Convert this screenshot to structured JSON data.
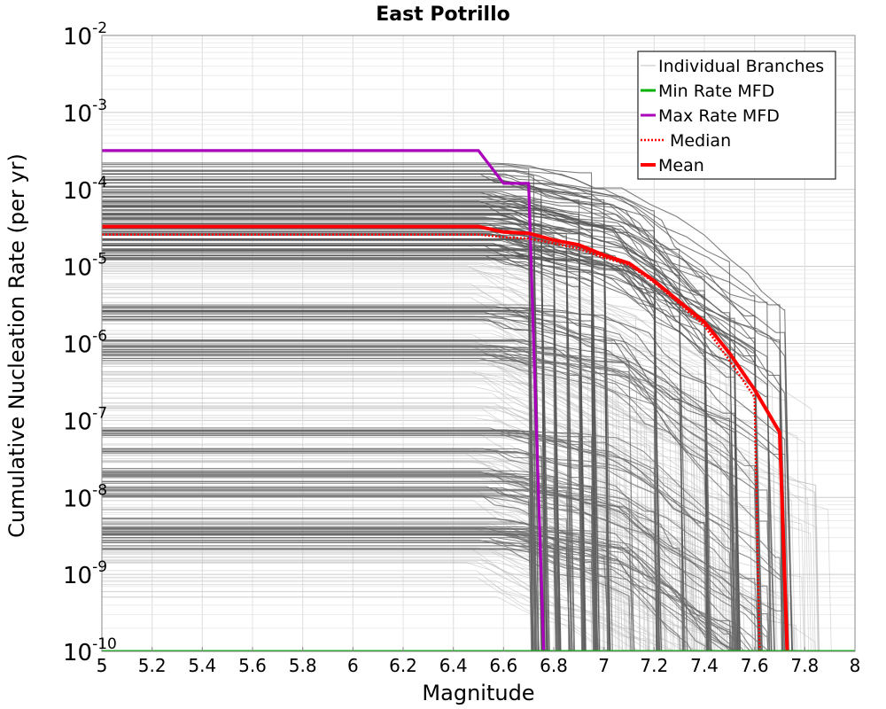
{
  "chart_data": {
    "type": "line",
    "title": "East Potrillo",
    "xlabel": "Magnitude",
    "ylabel": "Cumulative Nucleation Rate (per yr)",
    "xlim": [
      5,
      8
    ],
    "ylim": [
      1e-10,
      0.01
    ],
    "y_scale": "log",
    "grid": true,
    "legend_position": "top-right",
    "x_ticks": [
      5,
      5.2,
      5.4,
      5.6,
      5.8,
      6,
      6.2,
      6.4,
      6.6,
      6.8,
      7,
      7.2,
      7.4,
      7.6,
      7.8,
      8
    ],
    "x_tick_labels": [
      "5",
      "5.2",
      "5.4",
      "5.6",
      "5.8",
      "6",
      "6.2",
      "6.4",
      "6.6",
      "6.8",
      "7",
      "7.2",
      "7.4",
      "7.6",
      "7.8",
      "8"
    ],
    "y_ticks": [
      {
        "value": 0.01,
        "base": "10",
        "exp": "-2"
      },
      {
        "value": 0.001,
        "base": "10",
        "exp": "-3"
      },
      {
        "value": 0.0001,
        "base": "10",
        "exp": "-4"
      },
      {
        "value": 1e-05,
        "base": "10",
        "exp": "-5"
      },
      {
        "value": 1e-06,
        "base": "10",
        "exp": "-6"
      },
      {
        "value": 1e-07,
        "base": "10",
        "exp": "-7"
      },
      {
        "value": 1e-08,
        "base": "10",
        "exp": "-8"
      },
      {
        "value": 1e-09,
        "base": "10",
        "exp": "-9"
      },
      {
        "value": 1e-10,
        "base": "10",
        "exp": "-10"
      }
    ],
    "colors": {
      "branches": "#555555",
      "branches_light": "#9a9a9a",
      "min": "#00b000",
      "max": "#aa00bb",
      "median": "#ff0000",
      "mean": "#ff0000"
    },
    "legend": [
      {
        "label": "Individual Branches",
        "color": "#c0c0c0",
        "style": "thin"
      },
      {
        "label": "Min Rate MFD",
        "color": "#00b000",
        "style": "solid"
      },
      {
        "label": "Max Rate MFD",
        "color": "#aa00bb",
        "style": "solid"
      },
      {
        "label": "Median",
        "color": "#ff0000",
        "style": "dotted"
      },
      {
        "label": "Mean",
        "color": "#ff0000",
        "style": "thick"
      }
    ],
    "series": [
      {
        "name": "Max Rate MFD",
        "points": [
          [
            5,
            0.00032
          ],
          [
            6.5,
            0.00032
          ],
          [
            6.6,
            0.00012
          ],
          [
            6.7,
            0.00012
          ],
          [
            6.72,
            1e-06
          ],
          [
            6.76,
            1e-10
          ]
        ]
      },
      {
        "name": "Mean",
        "points": [
          [
            5,
            3.3e-05
          ],
          [
            6.5,
            3.3e-05
          ],
          [
            6.6,
            2.8e-05
          ],
          [
            6.7,
            2.7e-05
          ],
          [
            6.8,
            2.2e-05
          ],
          [
            6.9,
            1.9e-05
          ],
          [
            7.0,
            1.4e-05
          ],
          [
            7.1,
            1.1e-05
          ],
          [
            7.2,
            6.5e-06
          ],
          [
            7.3,
            3.5e-06
          ],
          [
            7.4,
            1.9e-06
          ],
          [
            7.5,
            7.5e-07
          ],
          [
            7.6,
            2.5e-07
          ],
          [
            7.7,
            7e-08
          ],
          [
            7.73,
            1e-10
          ]
        ]
      },
      {
        "name": "Median",
        "points": [
          [
            5,
            2.6e-05
          ],
          [
            6.5,
            2.6e-05
          ],
          [
            6.6,
            2.4e-05
          ],
          [
            6.7,
            2.3e-05
          ],
          [
            6.8,
            2e-05
          ],
          [
            6.9,
            1.7e-05
          ],
          [
            7.0,
            1.3e-05
          ],
          [
            7.1,
            1.05e-05
          ],
          [
            7.2,
            6.2e-06
          ],
          [
            7.3,
            3.3e-06
          ],
          [
            7.4,
            1.7e-06
          ],
          [
            7.5,
            6e-07
          ],
          [
            7.6,
            2e-07
          ],
          [
            7.62,
            1e-10
          ]
        ]
      },
      {
        "name": "Min Rate MFD",
        "points": [
          [
            5,
            1e-10
          ],
          [
            8,
            1e-10
          ]
        ]
      }
    ],
    "individual_branches": {
      "plateau_levels": [
        0.00021,
        0.00017,
        0.00015,
        0.00013,
        0.00011,
        9.5e-05,
        8.5e-05,
        7.5e-05,
        6.8e-05,
        6.2e-05,
        5.6e-05,
        5e-05,
        4.5e-05,
        4.1e-05,
        3.7e-05,
        3.3e-05,
        3e-05,
        2.7e-05,
        2.4e-05,
        2.2e-05,
        2e-05,
        1.8e-05,
        1.6e-05,
        1.45e-05,
        1.3e-05,
        3.1e-06,
        2.8e-06,
        2.5e-06,
        2.2e-06,
        1.1e-06,
        9.5e-07,
        8.5e-07,
        7.5e-07,
        6.5e-07,
        8e-08,
        7e-08,
        6.5e-08,
        4e-08,
        2.2e-08,
        2e-08,
        1.6e-08,
        1.3e-08,
        1.1e-08,
        5e-09,
        4.2e-09,
        3.8e-09,
        3.5e-09,
        3.2e-09,
        2.8e-09,
        2.2e-09
      ],
      "cutoff_magnitudes": [
        6.7,
        6.72,
        6.75,
        6.8,
        6.85,
        6.9,
        6.95,
        7.0,
        7.1,
        7.2,
        7.3,
        7.4,
        7.5,
        7.52,
        7.6,
        7.65,
        7.7,
        7.72
      ]
    }
  }
}
